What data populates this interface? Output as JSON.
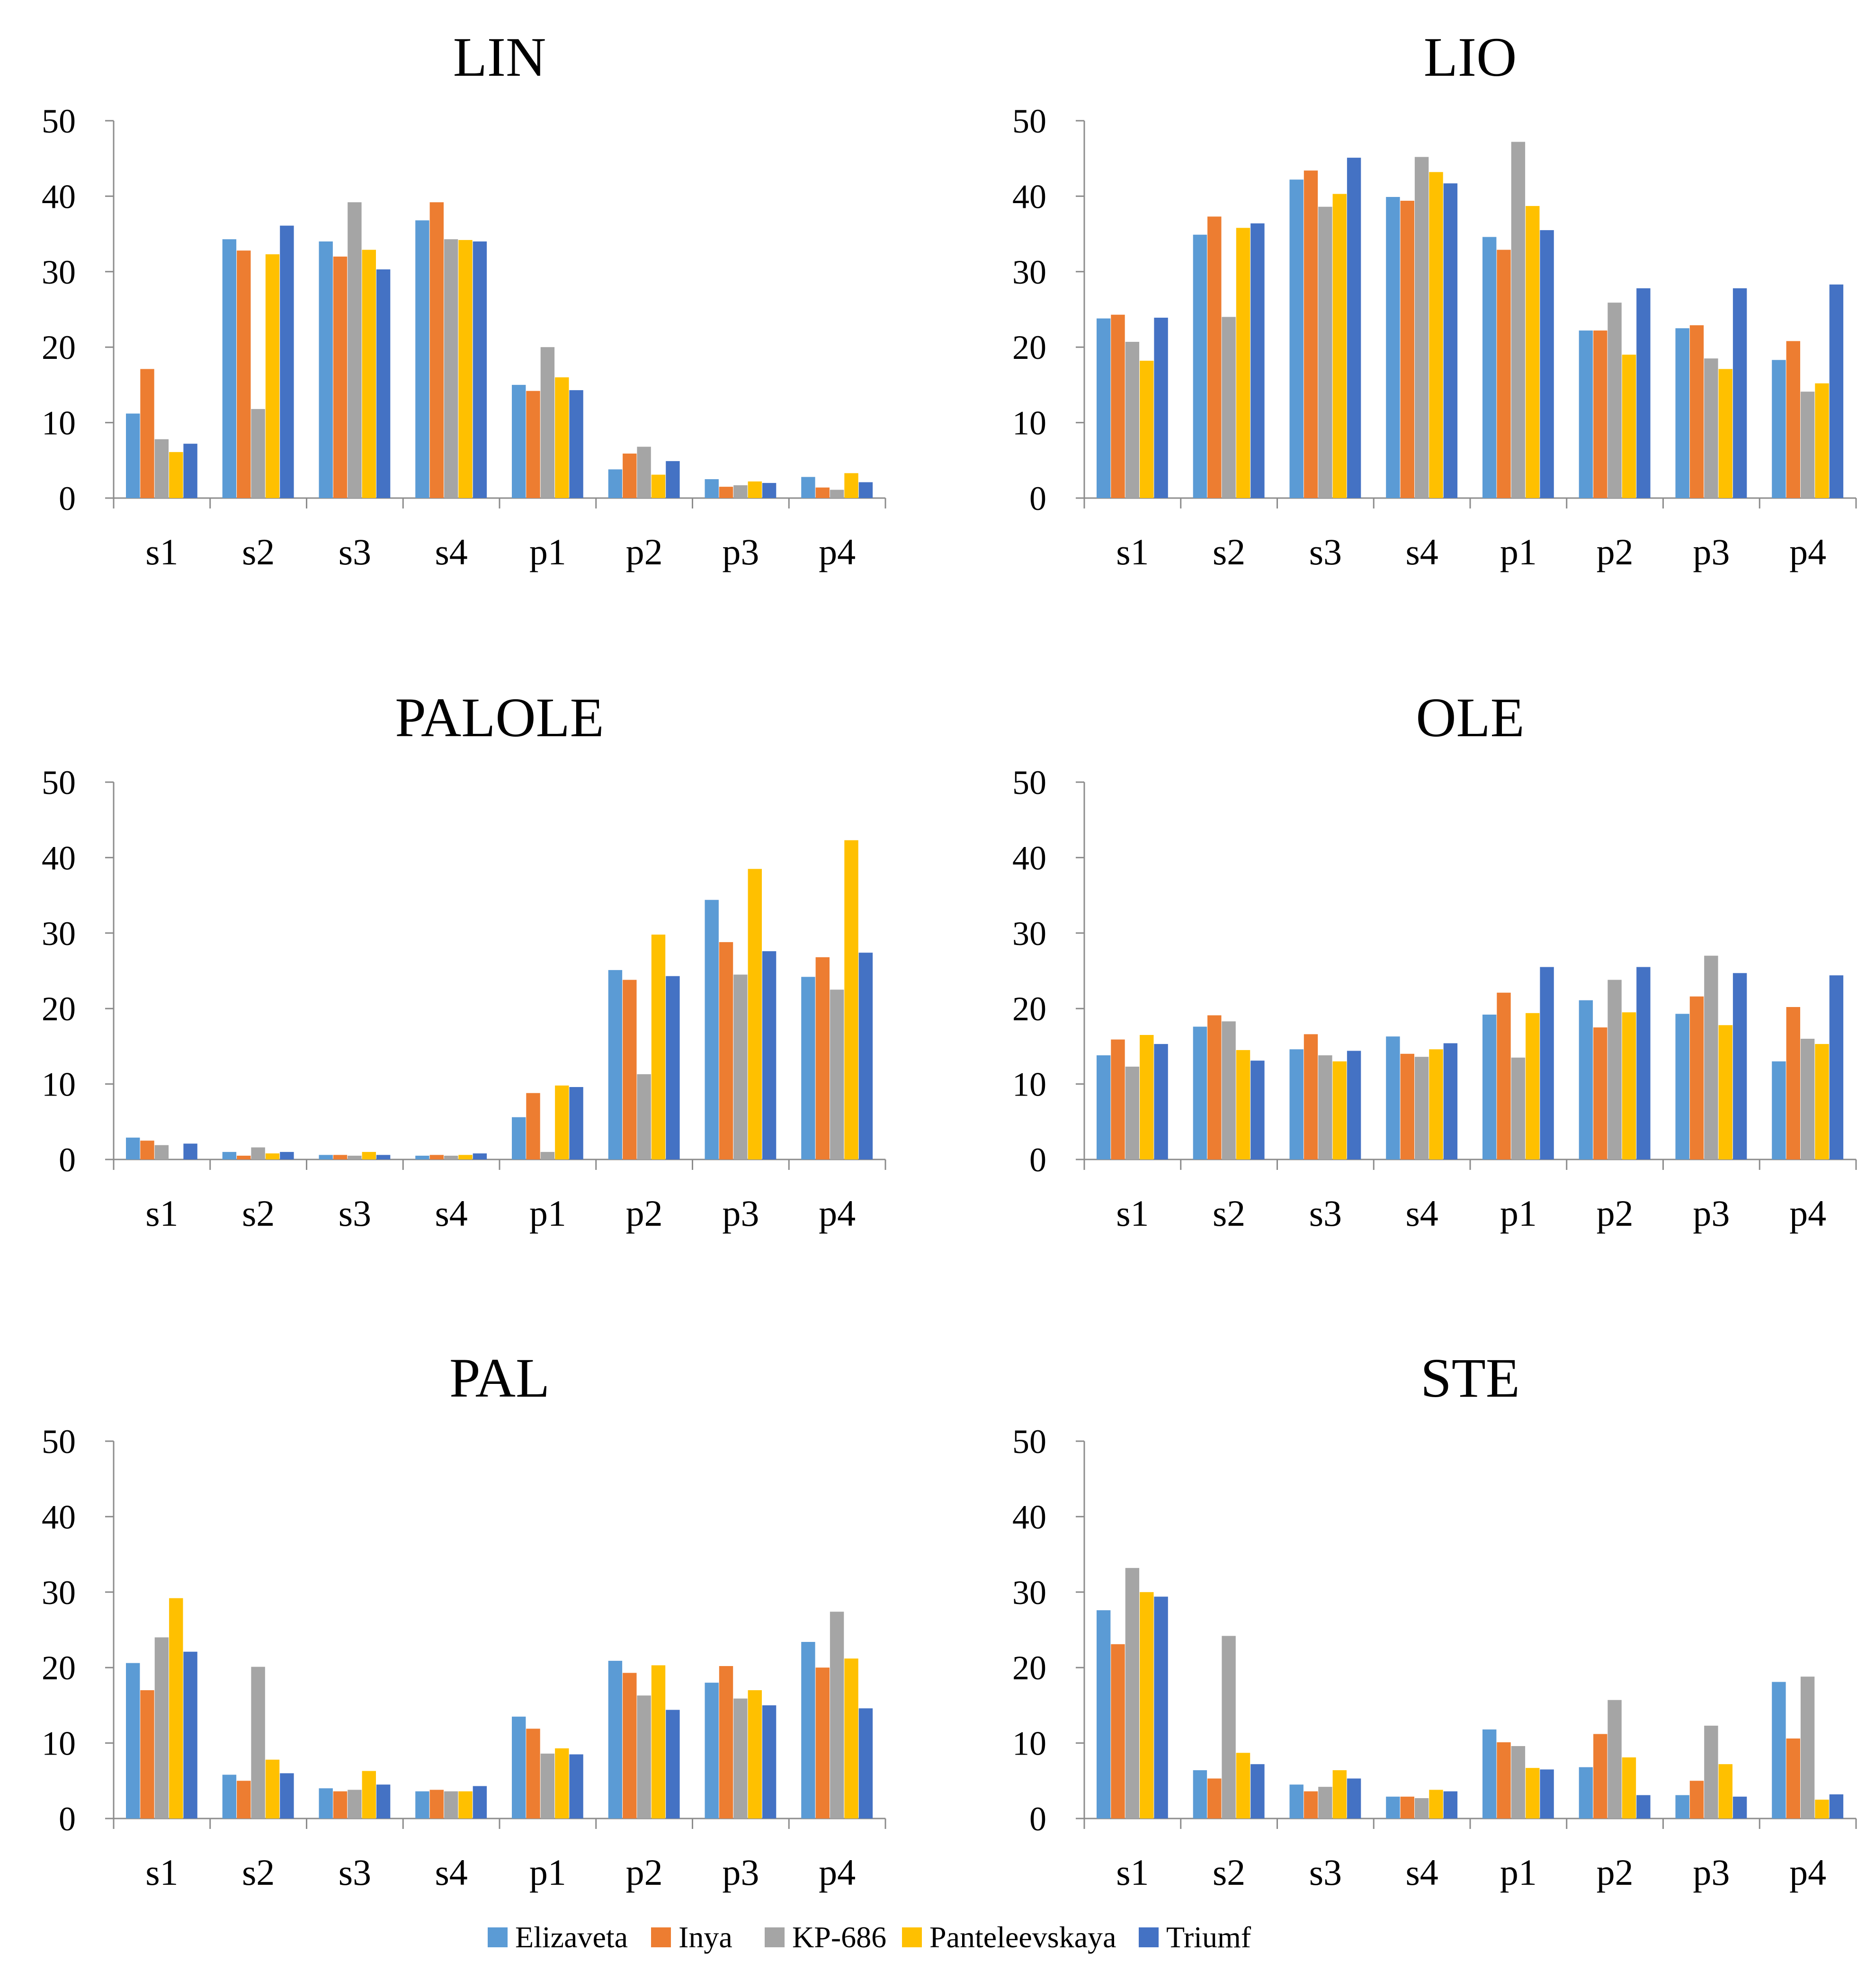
{
  "chart_data": [
    {
      "type": "bar",
      "title": "LIN",
      "categories": [
        "s1",
        "s2",
        "s3",
        "s4",
        "p1",
        "p2",
        "p3",
        "p4"
      ],
      "ylim": [
        0,
        50
      ],
      "yticks": [
        0,
        10,
        20,
        30,
        40,
        50
      ],
      "xlabel": "",
      "ylabel": "",
      "series": [
        {
          "name": "Elizaveta",
          "values": [
            11.2,
            34.3,
            34.0,
            36.8,
            15.0,
            3.8,
            2.5,
            2.8
          ]
        },
        {
          "name": "Inya",
          "values": [
            17.1,
            32.8,
            32.0,
            39.2,
            14.2,
            5.9,
            1.5,
            1.4
          ]
        },
        {
          "name": "KP-686",
          "values": [
            7.8,
            11.8,
            39.2,
            34.3,
            20.0,
            6.8,
            1.7,
            1.1
          ]
        },
        {
          "name": "Panteleevskaya",
          "values": [
            6.1,
            32.3,
            32.9,
            34.2,
            16.0,
            3.1,
            2.2,
            3.3
          ]
        },
        {
          "name": "Triumf",
          "values": [
            7.2,
            36.1,
            30.3,
            34.0,
            14.3,
            4.9,
            2.0,
            2.1
          ]
        }
      ]
    },
    {
      "type": "bar",
      "title": "LIO",
      "categories": [
        "s1",
        "s2",
        "s3",
        "s4",
        "p1",
        "p2",
        "p3",
        "p4"
      ],
      "ylim": [
        0,
        50
      ],
      "yticks": [
        0,
        10,
        20,
        30,
        40,
        50
      ],
      "xlabel": "",
      "ylabel": "",
      "series": [
        {
          "name": "Elizaveta",
          "values": [
            23.8,
            34.9,
            42.2,
            39.9,
            34.6,
            22.2,
            22.5,
            18.3
          ]
        },
        {
          "name": "Inya",
          "values": [
            24.3,
            37.3,
            43.4,
            39.4,
            32.9,
            22.2,
            22.9,
            20.8
          ]
        },
        {
          "name": "KP-686",
          "values": [
            20.7,
            24.0,
            38.6,
            45.2,
            47.2,
            25.9,
            18.5,
            14.1
          ]
        },
        {
          "name": "Panteleevskaya",
          "values": [
            18.2,
            35.8,
            40.3,
            43.2,
            38.7,
            19.0,
            17.1,
            15.2
          ]
        },
        {
          "name": "Triumf",
          "values": [
            23.9,
            36.4,
            45.1,
            41.7,
            35.5,
            27.8,
            27.8,
            28.3
          ]
        }
      ]
    },
    {
      "type": "bar",
      "title": "PALOLE",
      "categories": [
        "s1",
        "s2",
        "s3",
        "s4",
        "p1",
        "p2",
        "p3",
        "p4"
      ],
      "ylim": [
        0,
        50
      ],
      "yticks": [
        0,
        10,
        20,
        30,
        40,
        50
      ],
      "xlabel": "",
      "ylabel": "",
      "series": [
        {
          "name": "Elizaveta",
          "values": [
            2.9,
            1.0,
            0.6,
            0.5,
            5.6,
            25.1,
            34.4,
            24.2
          ]
        },
        {
          "name": "Inya",
          "values": [
            2.5,
            0.5,
            0.6,
            0.6,
            8.8,
            23.8,
            28.8,
            26.8
          ]
        },
        {
          "name": "KP-686",
          "values": [
            1.9,
            1.6,
            0.5,
            0.5,
            1.0,
            11.3,
            24.5,
            22.5
          ]
        },
        {
          "name": "Panteleevskaya",
          "values": [
            0.0,
            0.8,
            1.0,
            0.6,
            9.8,
            29.8,
            38.5,
            42.3
          ]
        },
        {
          "name": "Triumf",
          "values": [
            2.1,
            1.0,
            0.6,
            0.8,
            9.6,
            24.3,
            27.6,
            27.4
          ]
        }
      ]
    },
    {
      "type": "bar",
      "title": "OLE",
      "categories": [
        "s1",
        "s2",
        "s3",
        "s4",
        "p1",
        "p2",
        "p3",
        "p4"
      ],
      "ylim": [
        0,
        50
      ],
      "yticks": [
        0,
        10,
        20,
        30,
        40,
        50
      ],
      "xlabel": "",
      "ylabel": "",
      "series": [
        {
          "name": "Elizaveta",
          "values": [
            13.8,
            17.6,
            14.6,
            16.3,
            19.2,
            21.1,
            19.3,
            13.0
          ]
        },
        {
          "name": "Inya",
          "values": [
            15.9,
            19.1,
            16.6,
            14.0,
            22.1,
            17.5,
            21.6,
            20.2
          ]
        },
        {
          "name": "KP-686",
          "values": [
            12.3,
            18.3,
            13.8,
            13.6,
            13.5,
            23.8,
            27.0,
            16.0
          ]
        },
        {
          "name": "Panteleevskaya",
          "values": [
            16.5,
            14.5,
            13.0,
            14.6,
            19.4,
            19.5,
            17.8,
            15.3
          ]
        },
        {
          "name": "Triumf",
          "values": [
            15.3,
            13.1,
            14.4,
            15.4,
            25.5,
            25.5,
            24.7,
            24.4
          ]
        }
      ]
    },
    {
      "type": "bar",
      "title": "PAL",
      "categories": [
        "s1",
        "s2",
        "s3",
        "s4",
        "p1",
        "p2",
        "p3",
        "p4"
      ],
      "ylim": [
        0,
        50
      ],
      "yticks": [
        0,
        10,
        20,
        30,
        40,
        50
      ],
      "xlabel": "",
      "ylabel": "",
      "series": [
        {
          "name": "Elizaveta",
          "values": [
            20.6,
            5.8,
            4.0,
            3.6,
            13.5,
            20.9,
            18.0,
            23.4
          ]
        },
        {
          "name": "Inya",
          "values": [
            17.0,
            5.0,
            3.6,
            3.8,
            11.9,
            19.3,
            20.2,
            20.0
          ]
        },
        {
          "name": "KP-686",
          "values": [
            24.0,
            20.1,
            3.8,
            3.6,
            8.6,
            16.3,
            15.9,
            27.4
          ]
        },
        {
          "name": "Panteleevskaya",
          "values": [
            29.2,
            7.8,
            6.3,
            3.6,
            9.3,
            20.3,
            17.0,
            21.2
          ]
        },
        {
          "name": "Triumf",
          "values": [
            22.1,
            6.0,
            4.5,
            4.3,
            8.5,
            14.4,
            15.0,
            14.6
          ]
        }
      ]
    },
    {
      "type": "bar",
      "title": "STE",
      "categories": [
        "s1",
        "s2",
        "s3",
        "s4",
        "p1",
        "p2",
        "p3",
        "p4"
      ],
      "ylim": [
        0,
        50
      ],
      "yticks": [
        0,
        10,
        20,
        30,
        40,
        50
      ],
      "xlabel": "",
      "ylabel": "",
      "series": [
        {
          "name": "Elizaveta",
          "values": [
            27.6,
            6.4,
            4.5,
            2.9,
            11.8,
            6.8,
            3.1,
            18.1
          ]
        },
        {
          "name": "Inya",
          "values": [
            23.1,
            5.3,
            3.6,
            2.9,
            10.1,
            11.2,
            5.0,
            10.6
          ]
        },
        {
          "name": "KP-686",
          "values": [
            33.2,
            24.2,
            4.2,
            2.7,
            9.6,
            15.7,
            12.3,
            18.8
          ]
        },
        {
          "name": "Panteleevskaya",
          "values": [
            30.0,
            8.7,
            6.4,
            3.8,
            6.7,
            8.1,
            7.2,
            2.5
          ]
        },
        {
          "name": "Triumf",
          "values": [
            29.4,
            7.2,
            5.3,
            3.6,
            6.5,
            3.1,
            2.9,
            3.2
          ]
        }
      ]
    }
  ],
  "legend": {
    "position": "bottom-center",
    "entries": [
      {
        "name": "Elizaveta",
        "color": "#5b9bd5"
      },
      {
        "name": "Inya",
        "color": "#ed7d31"
      },
      {
        "name": "KP-686",
        "color": "#a5a5a5"
      },
      {
        "name": "Panteleevskaya",
        "color": "#ffc000"
      },
      {
        "name": "Triumf",
        "color": "#4472c4"
      }
    ]
  }
}
